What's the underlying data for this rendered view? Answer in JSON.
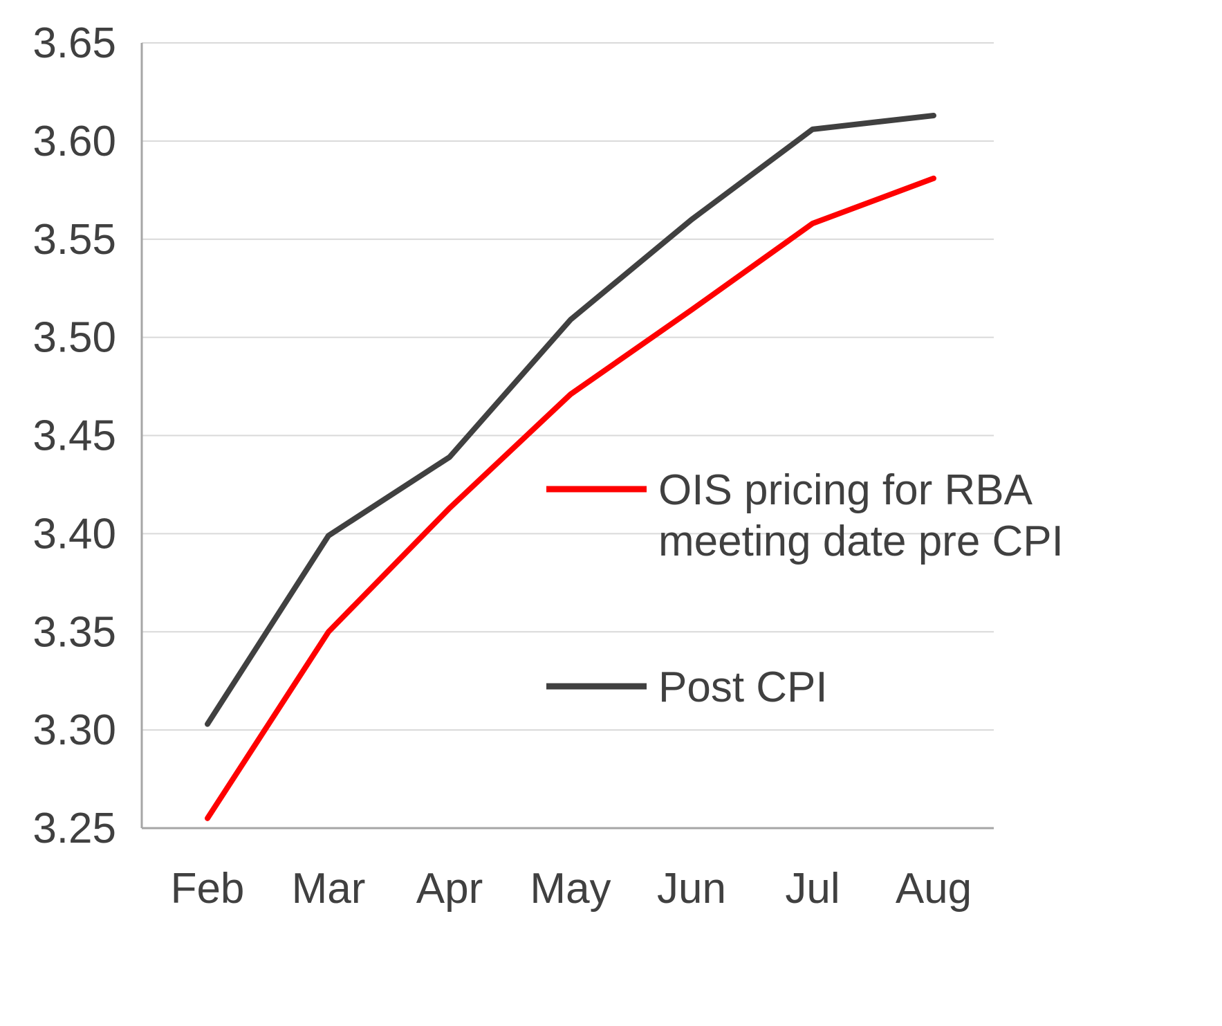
{
  "chart_data": {
    "type": "line",
    "categories": [
      "Feb",
      "Mar",
      "Apr",
      "May",
      "Jun",
      "Jul",
      "Aug"
    ],
    "series": [
      {
        "name": "OIS pricing for RBA meeting date pre CPI",
        "color": "#fe0000",
        "values": [
          3.255,
          3.35,
          3.413,
          3.471,
          3.514,
          3.558,
          3.581
        ]
      },
      {
        "name": "Post CPI",
        "color": "#404040",
        "values": [
          3.303,
          3.399,
          3.439,
          3.509,
          3.56,
          3.606,
          3.613
        ]
      }
    ],
    "ylim": [
      3.25,
      3.65
    ],
    "ytick_step": 0.05,
    "ytick_decimals": 2,
    "grid": true,
    "legend_position": "inside-right",
    "legend": [
      {
        "label_lines": [
          "OIS pricing for RBA",
          "meeting date pre CPI"
        ],
        "color": "#fe0000"
      },
      {
        "label_lines": [
          "Post CPI"
        ],
        "color": "#404040"
      }
    ]
  },
  "style": {
    "grid_color": "#d9d9d9",
    "axis_color": "#a6a6a6",
    "label_color": "#404040",
    "background": "#ffffff"
  }
}
